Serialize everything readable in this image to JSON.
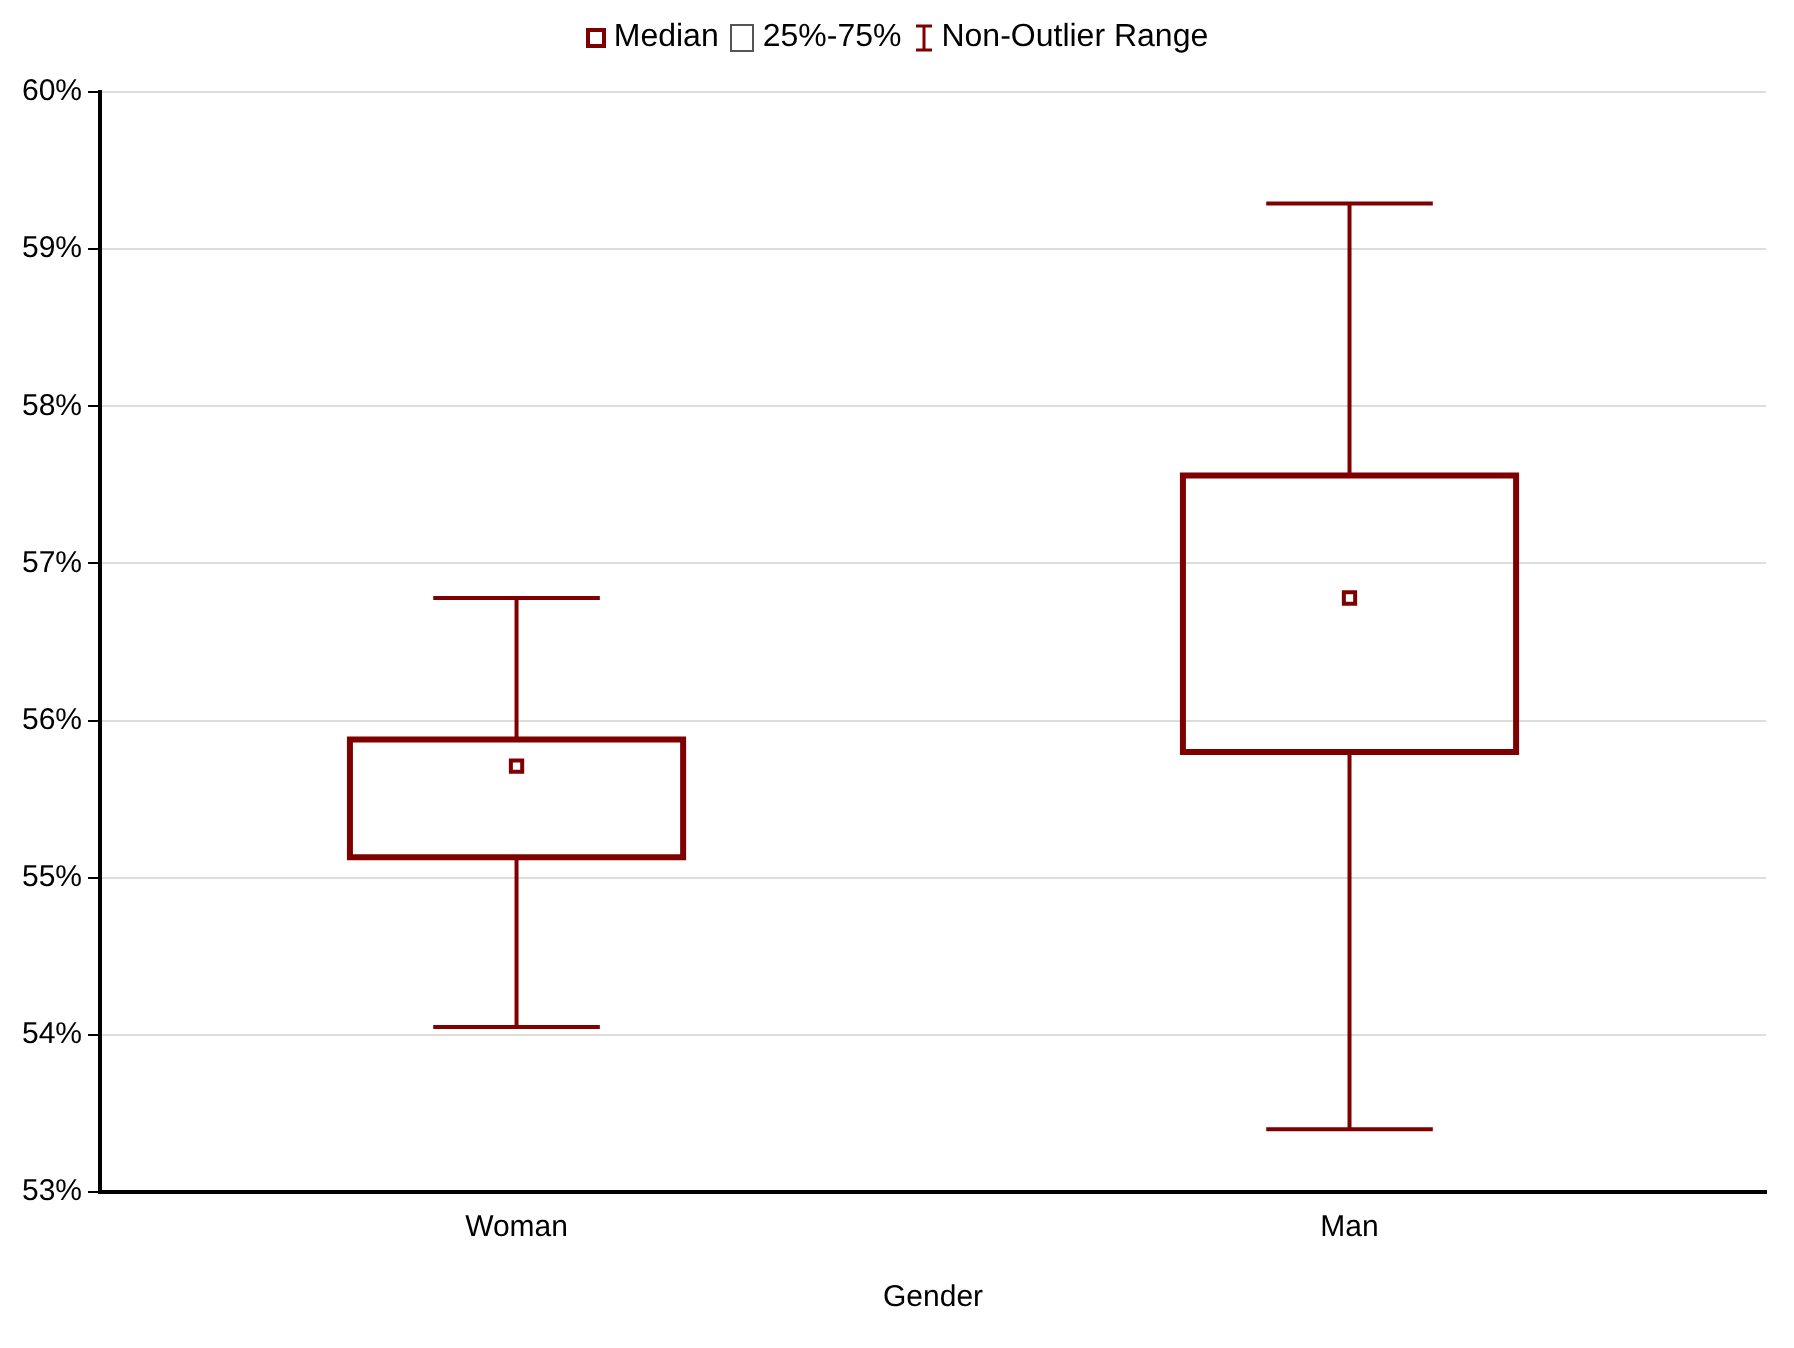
{
  "chart_data": {
    "type": "box",
    "xlabel": "Gender",
    "categories": [
      "Woman",
      "Man"
    ],
    "boxes": [
      {
        "low": 54.05,
        "q1": 55.13,
        "median": 55.71,
        "q3": 55.88,
        "high": 56.78
      },
      {
        "low": 53.4,
        "q1": 55.8,
        "median": 56.78,
        "q3": 57.56,
        "high": 59.29
      }
    ],
    "color": "#7f0000",
    "ylim": [
      53,
      60
    ],
    "yticks": [
      {
        "value": 53,
        "label": "53%"
      },
      {
        "value": 54,
        "label": "54%"
      },
      {
        "value": 55,
        "label": "55%"
      },
      {
        "value": 56,
        "label": "56%"
      },
      {
        "value": 57,
        "label": "57%"
      },
      {
        "value": 58,
        "label": "58%"
      },
      {
        "value": 59,
        "label": "59%"
      },
      {
        "value": 60,
        "label": "60%"
      }
    ],
    "grid": "y",
    "annotations": [
      "Median",
      "25%-75%",
      "Non-Outlier Range"
    ]
  }
}
